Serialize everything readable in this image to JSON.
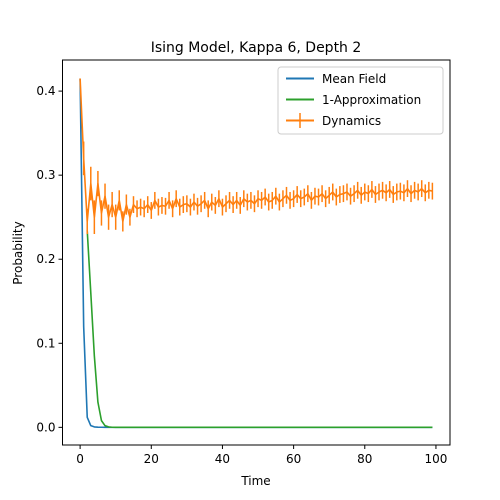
{
  "chart_data": {
    "type": "line",
    "title": "Ising Model, Kappa 6, Depth 2",
    "xlabel": "Time",
    "ylabel": "Probability",
    "xlim": [
      -4.95,
      103.95
    ],
    "ylim": [
      -0.021,
      0.437
    ],
    "xticks": [
      "0",
      "20",
      "40",
      "60",
      "80",
      "100"
    ],
    "yticks": [
      "0.0",
      "0.1",
      "0.2",
      "0.3",
      "0.4"
    ],
    "grid": false,
    "legend_position": "top-right",
    "series": [
      {
        "name": "Mean Field",
        "color": "#1f77b4",
        "x": [
          0,
          1,
          2,
          3,
          4,
          5,
          6,
          7,
          8,
          99
        ],
        "y": [
          0.415,
          0.12,
          0.012,
          0.002,
          0.0005,
          0.0002,
          0.0001,
          0.0,
          0.0,
          0.0
        ]
      },
      {
        "name": "1-Approximation",
        "color": "#2ca02c",
        "x": [
          2,
          3,
          4,
          5,
          6,
          7,
          8,
          9,
          10,
          99
        ],
        "y": [
          0.234,
          0.16,
          0.085,
          0.03,
          0.008,
          0.002,
          0.0005,
          0.0001,
          0.0,
          0.0
        ]
      },
      {
        "name": "Dynamics",
        "color": "#ff7f0e",
        "x": [
          0,
          1,
          2,
          3,
          4,
          5,
          6,
          7,
          8,
          9,
          10,
          11,
          12,
          13,
          14,
          15,
          16,
          17,
          18,
          19,
          20,
          21,
          22,
          23,
          24,
          25,
          26,
          27,
          28,
          29,
          30,
          31,
          32,
          33,
          34,
          35,
          36,
          37,
          38,
          39,
          40,
          41,
          42,
          43,
          44,
          45,
          46,
          47,
          48,
          49,
          50,
          51,
          52,
          53,
          54,
          55,
          56,
          57,
          58,
          59,
          60,
          61,
          62,
          63,
          64,
          65,
          66,
          67,
          68,
          69,
          70,
          71,
          72,
          73,
          74,
          75,
          76,
          77,
          78,
          79,
          80,
          81,
          82,
          83,
          84,
          85,
          86,
          87,
          88,
          89,
          90,
          91,
          92,
          93,
          94,
          95,
          96,
          97,
          98,
          99
        ],
        "y": [
          0.415,
          0.32,
          0.245,
          0.29,
          0.25,
          0.29,
          0.255,
          0.275,
          0.25,
          0.265,
          0.25,
          0.27,
          0.245,
          0.265,
          0.25,
          0.265,
          0.26,
          0.262,
          0.26,
          0.265,
          0.258,
          0.27,
          0.262,
          0.264,
          0.263,
          0.27,
          0.26,
          0.272,
          0.262,
          0.265,
          0.266,
          0.262,
          0.268,
          0.263,
          0.266,
          0.27,
          0.26,
          0.268,
          0.264,
          0.272,
          0.262,
          0.266,
          0.27,
          0.265,
          0.27,
          0.264,
          0.272,
          0.268,
          0.27,
          0.266,
          0.272,
          0.27,
          0.274,
          0.268,
          0.27,
          0.275,
          0.268,
          0.272,
          0.276,
          0.27,
          0.272,
          0.277,
          0.272,
          0.274,
          0.278,
          0.27,
          0.275,
          0.274,
          0.278,
          0.272,
          0.276,
          0.28,
          0.274,
          0.277,
          0.278,
          0.28,
          0.275,
          0.278,
          0.282,
          0.276,
          0.28,
          0.278,
          0.283,
          0.277,
          0.28,
          0.282,
          0.279,
          0.283,
          0.277,
          0.28,
          0.281,
          0.279,
          0.284,
          0.278,
          0.282,
          0.28,
          0.284,
          0.279,
          0.282,
          0.281
        ],
        "err": [
          0.0,
          0.02,
          0.015,
          0.02,
          0.02,
          0.015,
          0.015,
          0.015,
          0.015,
          0.015,
          0.015,
          0.012,
          0.012,
          0.012,
          0.01,
          0.01,
          0.01,
          0.01,
          0.01,
          0.01,
          0.01,
          0.01,
          0.01,
          0.01,
          0.01,
          0.01,
          0.01,
          0.01,
          0.01,
          0.01,
          0.01,
          0.01,
          0.01,
          0.01,
          0.01,
          0.01,
          0.01,
          0.01,
          0.01,
          0.01,
          0.01,
          0.01,
          0.01,
          0.01,
          0.01,
          0.01,
          0.01,
          0.01,
          0.01,
          0.01,
          0.01,
          0.01,
          0.01,
          0.01,
          0.01,
          0.01,
          0.01,
          0.01,
          0.01,
          0.01,
          0.01,
          0.01,
          0.01,
          0.01,
          0.01,
          0.01,
          0.01,
          0.01,
          0.01,
          0.01,
          0.01,
          0.01,
          0.01,
          0.01,
          0.01,
          0.01,
          0.01,
          0.01,
          0.01,
          0.01,
          0.01,
          0.01,
          0.01,
          0.01,
          0.01,
          0.01,
          0.01,
          0.01,
          0.01,
          0.01,
          0.01,
          0.01,
          0.01,
          0.01,
          0.01,
          0.01,
          0.01,
          0.01,
          0.01,
          0.01
        ]
      }
    ]
  }
}
